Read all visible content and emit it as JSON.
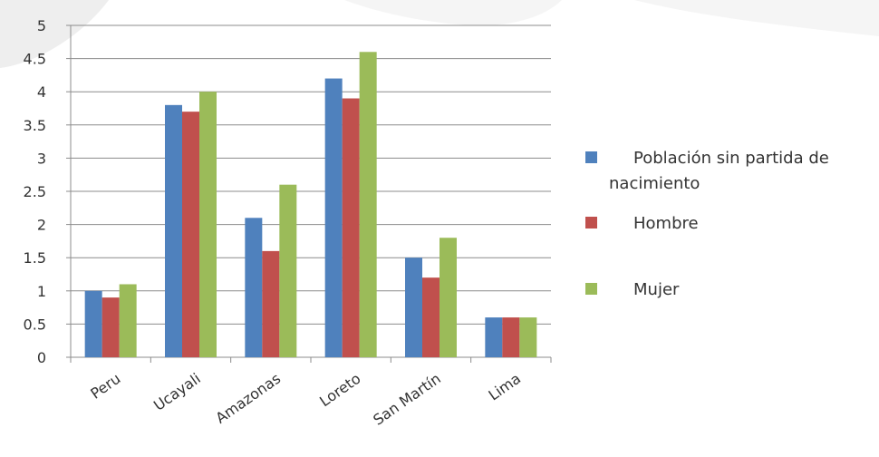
{
  "chart_data": {
    "type": "bar",
    "title": "",
    "xlabel": "",
    "ylabel": "",
    "categories": [
      "Peru",
      "Ucayali",
      "Amazonas",
      "Loreto",
      "San Martín",
      "Lima"
    ],
    "series": [
      {
        "name": "Población sin partida de nacimiento",
        "color": "#4f81bd",
        "values": [
          1.0,
          3.8,
          2.1,
          4.2,
          1.5,
          0.6
        ]
      },
      {
        "name": "Hombre",
        "color": "#c0504d",
        "values": [
          0.9,
          3.7,
          1.6,
          3.9,
          1.2,
          0.6
        ]
      },
      {
        "name": "Mujer",
        "color": "#9bbb59",
        "values": [
          1.1,
          4.0,
          2.6,
          4.6,
          1.8,
          0.6
        ]
      }
    ],
    "ylim": [
      0,
      5
    ],
    "yticks": [
      "0",
      "0.5",
      "1",
      "1.5",
      "2",
      "2.5",
      "3",
      "3.5",
      "4",
      "4.5",
      "5"
    ],
    "grid": true,
    "legend_position": "right",
    "legend_lines": [
      [
        "Población sin partida de",
        "nacimiento"
      ],
      [
        "Hombre"
      ],
      [
        "Mujer"
      ]
    ]
  }
}
